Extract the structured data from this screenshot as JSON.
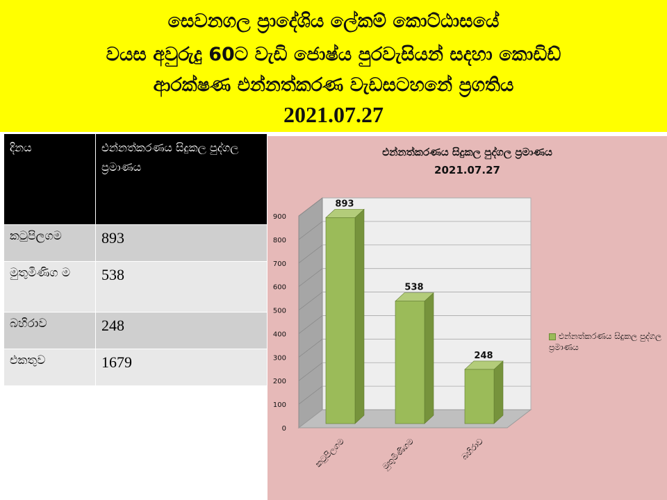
{
  "header": {
    "line1": "සෙවනගල ප්‍රාදේශිය ලේකම් කොට්ඨාසයේ",
    "line2": "වයස අවුරුදු 60ට වැඩි ජොෂ්ය පුරවැසියන් සදහා කොඩිඩ්",
    "line3": "ආරක්ෂණ එන්නත්කරණ වැඩසටහනේ  ප්‍රගතිය",
    "line4": "2021.07.27"
  },
  "table": {
    "headers": [
      "දිනය",
      "එන්නත්කරණය සිදුකල පුද්ගල ප්‍රමාණය"
    ],
    "rows": [
      [
        "කටුපිලගම",
        "893"
      ],
      [
        "මුතුමිණිග ම",
        "538"
      ],
      [
        "බහිරාව",
        "248"
      ],
      [
        "එකතුව",
        "1679"
      ]
    ]
  },
  "colors": {
    "header_bg": "#ffff00",
    "chart_bg": "#e6b9b8",
    "bar": "#9bbb59"
  },
  "chart_data": {
    "type": "bar",
    "title": "එන්නත්කරණය සිදුකල පුද්ගල ප්‍රමාණය",
    "subtitle": "2021.07.27",
    "categories": [
      "කටුපිලගම",
      "මුතුමිණිගම",
      "බහිරාව"
    ],
    "series": [
      {
        "name": "එන්නත්කරණය සිදුකල පුද්ගල ප්‍රමාණය",
        "values": [
          893,
          538,
          248
        ]
      }
    ],
    "ylim": [
      0,
      900
    ],
    "yticks": [
      0,
      100,
      200,
      300,
      400,
      500,
      600,
      700,
      800,
      900
    ],
    "data_labels": true,
    "grid": true,
    "legend": "right",
    "style": "3d"
  }
}
